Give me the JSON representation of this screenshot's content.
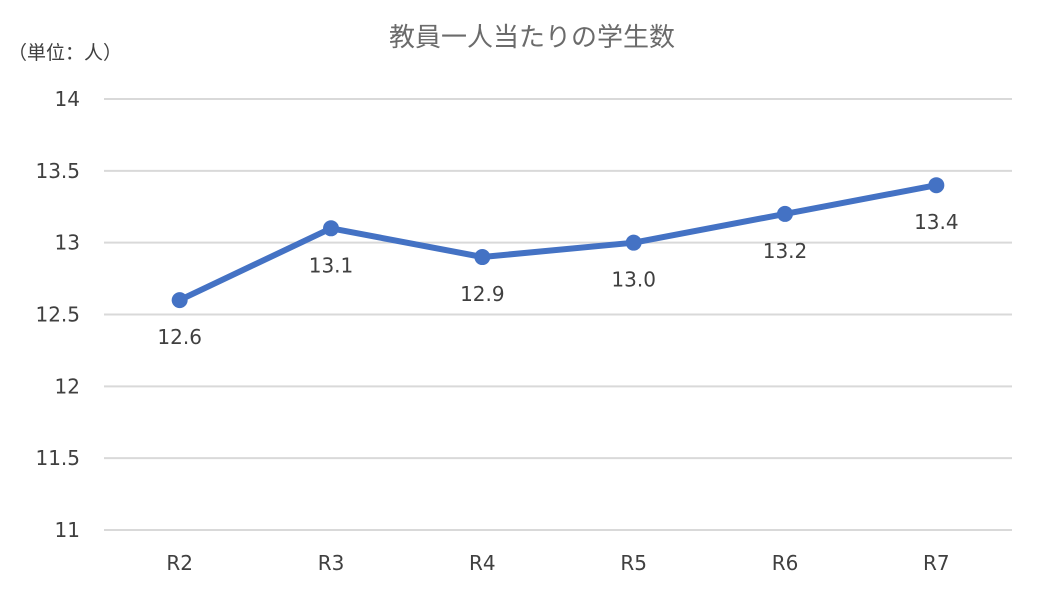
{
  "chart_data": {
    "type": "line",
    "title": "教員一人当たりの学生数",
    "unit_label": "（単位：人）",
    "xlabel": "",
    "ylabel": "",
    "categories": [
      "R2",
      "R3",
      "R4",
      "R5",
      "R6",
      "R7"
    ],
    "values": [
      12.6,
      13.1,
      12.9,
      13.0,
      13.2,
      13.4
    ],
    "data_labels": [
      "12.6",
      "13.1",
      "12.9",
      "13.0",
      "13.2",
      "13.4"
    ],
    "ylim": [
      11,
      14
    ],
    "yticks": [
      11,
      11.5,
      12,
      12.5,
      13,
      13.5,
      14
    ],
    "ytick_labels": [
      "11",
      "11.5",
      "12",
      "12.5",
      "13",
      "13.5",
      "14"
    ],
    "grid": true,
    "legend": "none",
    "colors": {
      "series": "#4472c4",
      "grid": "#d9d9d9",
      "title": "#6b6b6b",
      "text": "#404040"
    }
  }
}
